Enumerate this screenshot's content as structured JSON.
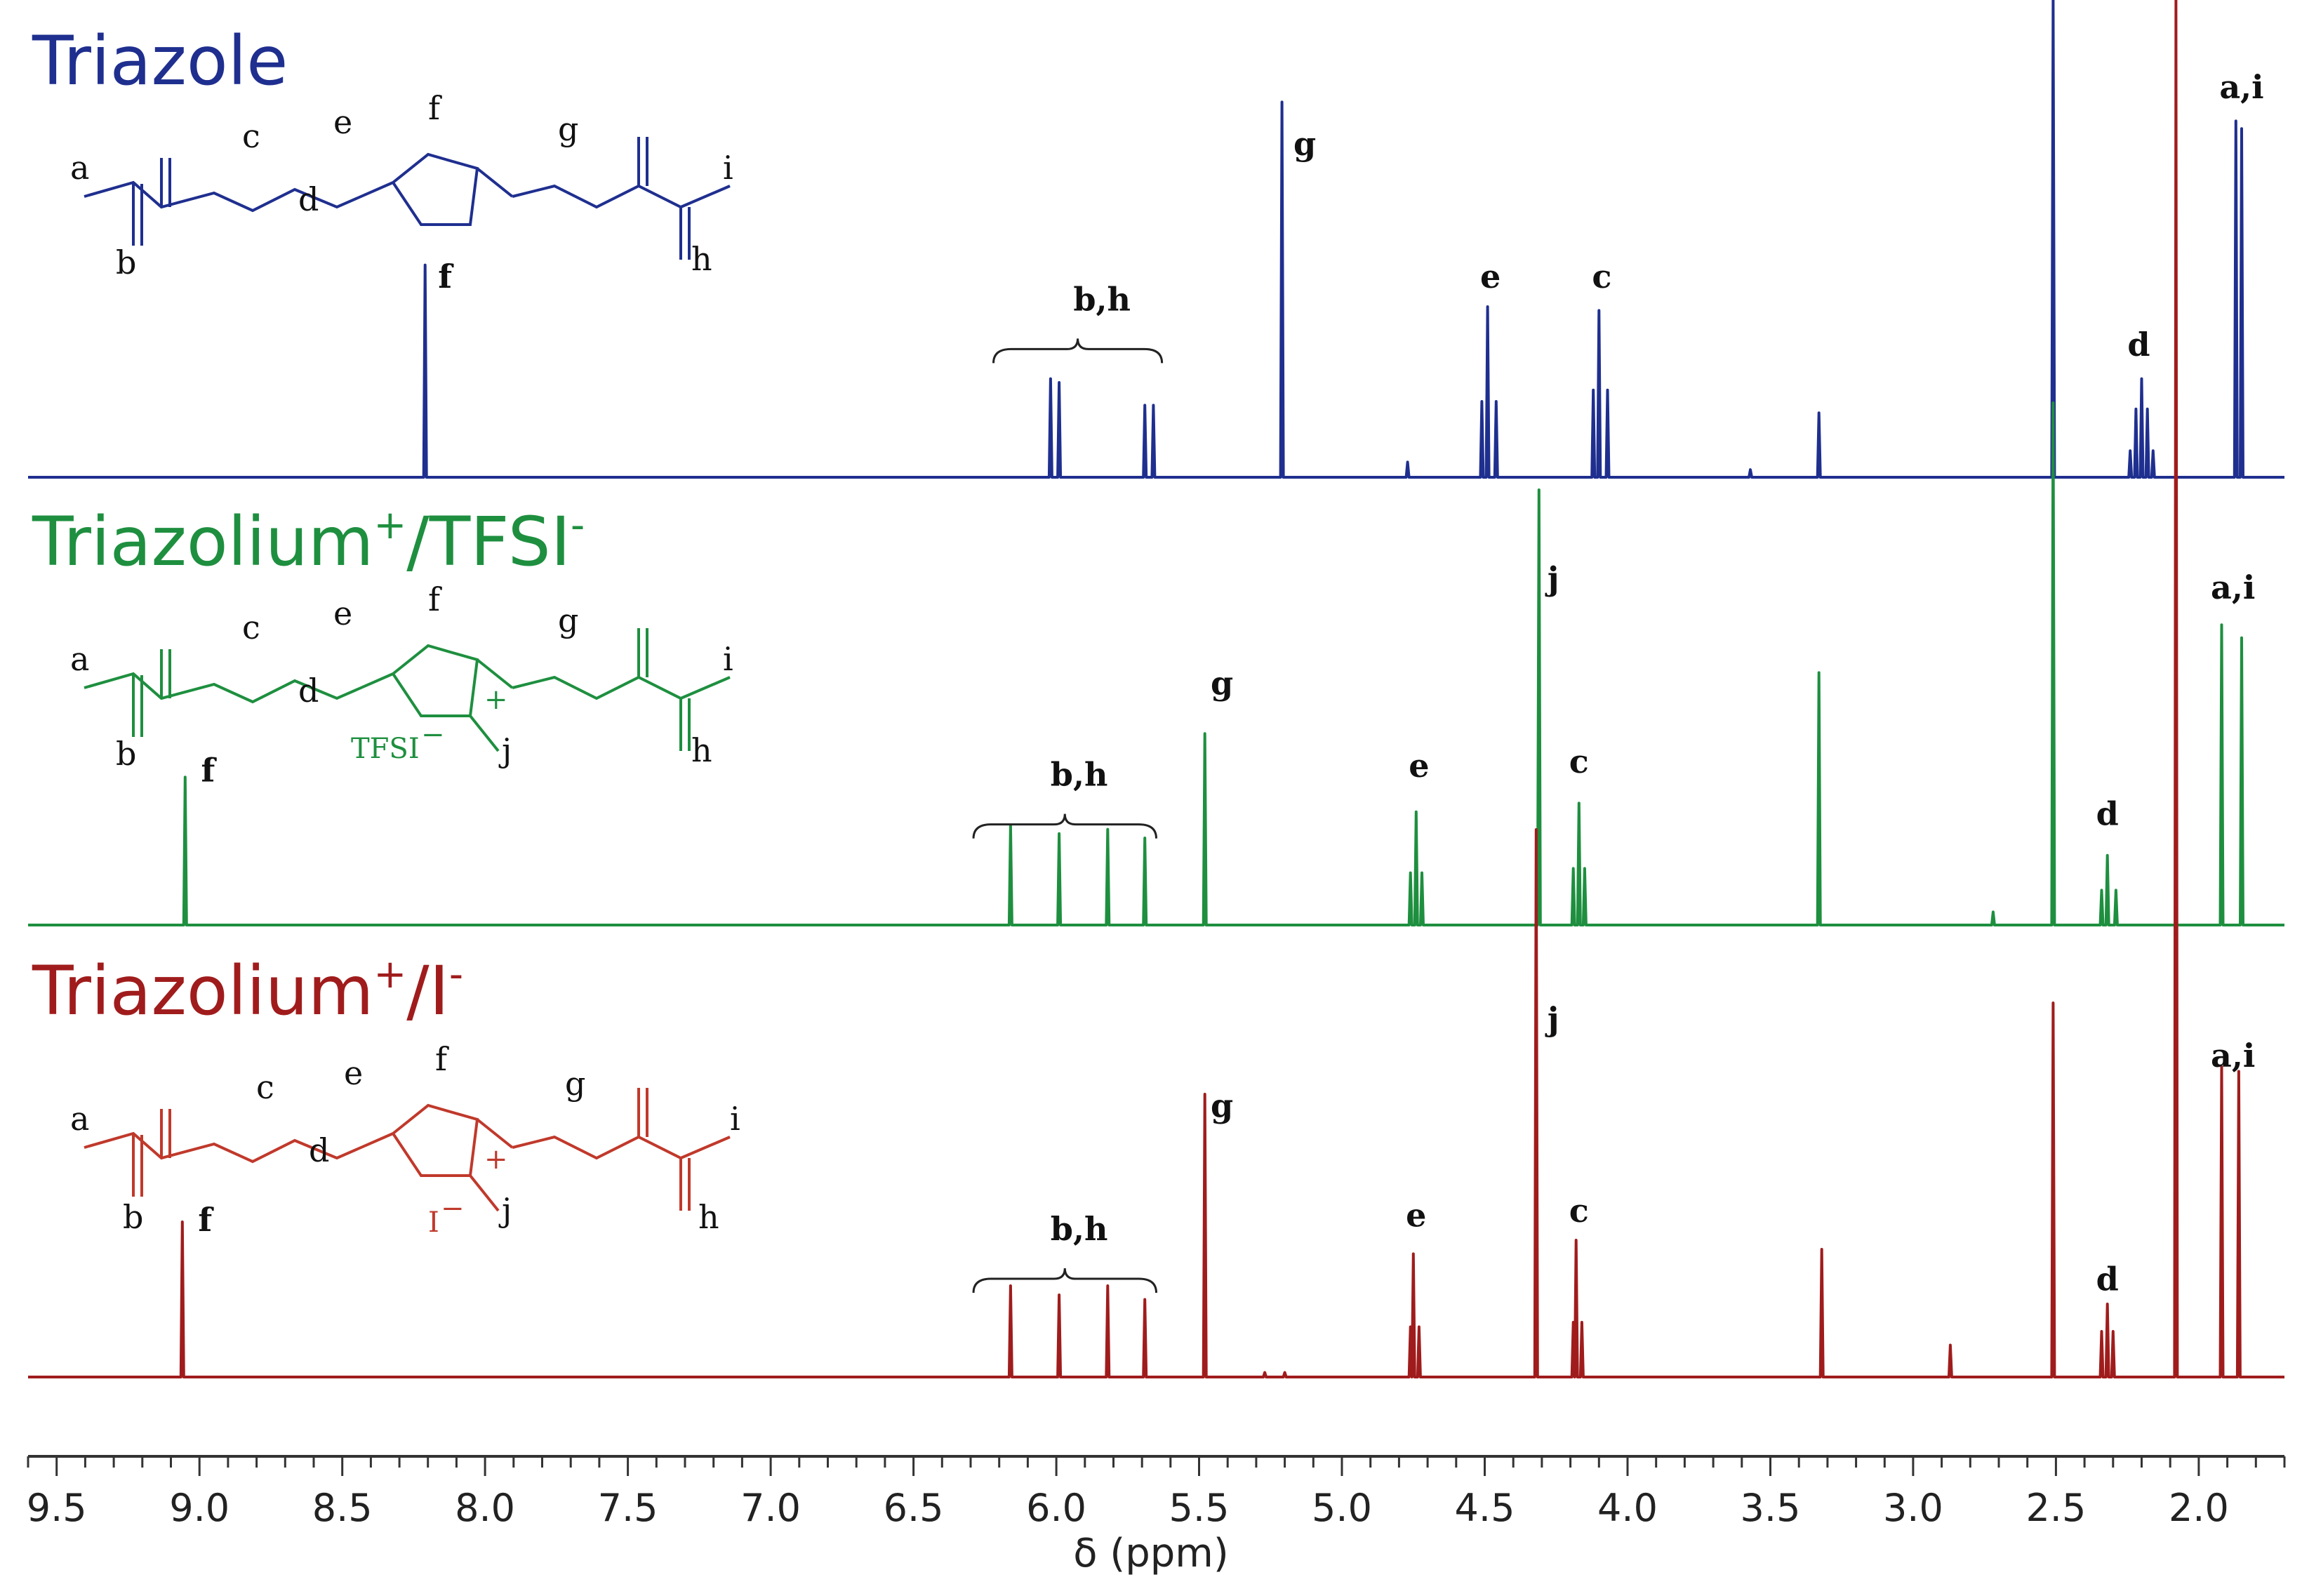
{
  "chart_data": {
    "type": "line",
    "xlabel": "δ (ppm)",
    "xlim": [
      9.6,
      1.7
    ],
    "x_reversed": true,
    "ticks": [
      "9.5",
      "9.0",
      "8.5",
      "8.0",
      "7.5",
      "7.0",
      "6.5",
      "6.0",
      "5.5",
      "5.0",
      "4.5",
      "4.0",
      "3.5",
      "3.0",
      "2.5",
      "2.0"
    ],
    "tick_values": [
      9.5,
      9.0,
      8.5,
      8.0,
      7.5,
      7.0,
      6.5,
      6.0,
      5.5,
      5.0,
      4.5,
      4.0,
      3.5,
      3.0,
      2.5,
      2.0
    ],
    "series": [
      {
        "name": "Triazole",
        "color": "#1f2f8f",
        "structure_labels": {
          "a": "a",
          "b": "b",
          "c": "c",
          "d": "d",
          "e": "e",
          "f": "f",
          "g": "g",
          "h": "h",
          "i": "i"
        },
        "peaks": [
          {
            "ppm": 8.21,
            "h": 0.56
          },
          {
            "ppm": 6.02,
            "h": 0.26
          },
          {
            "ppm": 5.99,
            "h": 0.25
          },
          {
            "ppm": 5.69,
            "h": 0.19
          },
          {
            "ppm": 5.66,
            "h": 0.19
          },
          {
            "ppm": 5.21,
            "h": 0.99
          },
          {
            "ppm": 4.77,
            "h": 0.04
          },
          {
            "ppm": 4.51,
            "h": 0.2
          },
          {
            "ppm": 4.49,
            "h": 0.45
          },
          {
            "ppm": 4.46,
            "h": 0.2
          },
          {
            "ppm": 4.12,
            "h": 0.23
          },
          {
            "ppm": 4.1,
            "h": 0.44
          },
          {
            "ppm": 4.07,
            "h": 0.23
          },
          {
            "ppm": 3.57,
            "h": 0.02
          },
          {
            "ppm": 3.33,
            "h": 0.17
          },
          {
            "ppm": 2.51,
            "h": 1.4
          },
          {
            "ppm": 2.24,
            "h": 0.07
          },
          {
            "ppm": 2.22,
            "h": 0.18
          },
          {
            "ppm": 2.2,
            "h": 0.26
          },
          {
            "ppm": 2.18,
            "h": 0.18
          },
          {
            "ppm": 2.16,
            "h": 0.07
          },
          {
            "ppm": 1.87,
            "h": 0.94
          },
          {
            "ppm": 1.85,
            "h": 0.92
          }
        ],
        "labels": [
          {
            "text": "f",
            "ppm": 8.14,
            "h": 0.5
          },
          {
            "text": "b,h",
            "ppm": 5.84,
            "h": 0.44,
            "bracket": [
              6.22,
              5.63
            ]
          },
          {
            "text": "g",
            "ppm": 5.13,
            "h": 0.85
          },
          {
            "text": "e",
            "ppm": 4.48,
            "h": 0.5
          },
          {
            "text": "c",
            "ppm": 4.09,
            "h": 0.5
          },
          {
            "text": "d",
            "ppm": 2.21,
            "h": 0.32
          },
          {
            "text": "a,i",
            "ppm": 1.85,
            "h": 1.0
          }
        ]
      },
      {
        "name": "Triazolium",
        "name_sup1": "+",
        "name_sep": "/TFSI",
        "name_sup2": "-",
        "color": "#1e8f3f",
        "counter_ion": "TFSI",
        "counter_charge": "−",
        "cation_charge": "+",
        "structure_labels": {
          "a": "a",
          "b": "b",
          "c": "c",
          "d": "d",
          "e": "e",
          "f": "f",
          "g": "g",
          "h": "h",
          "i": "i",
          "j": "j"
        },
        "peaks": [
          {
            "ppm": 9.05,
            "h": 0.34
          },
          {
            "ppm": 6.16,
            "h": 0.23
          },
          {
            "ppm": 5.99,
            "h": 0.21
          },
          {
            "ppm": 5.82,
            "h": 0.22
          },
          {
            "ppm": 5.69,
            "h": 0.2
          },
          {
            "ppm": 5.48,
            "h": 0.44
          },
          {
            "ppm": 4.76,
            "h": 0.12
          },
          {
            "ppm": 4.74,
            "h": 0.26
          },
          {
            "ppm": 4.72,
            "h": 0.12
          },
          {
            "ppm": 4.31,
            "h": 1.0
          },
          {
            "ppm": 4.19,
            "h": 0.13
          },
          {
            "ppm": 4.17,
            "h": 0.28
          },
          {
            "ppm": 4.15,
            "h": 0.13
          },
          {
            "ppm": 3.33,
            "h": 0.58
          },
          {
            "ppm": 2.72,
            "h": 0.03
          },
          {
            "ppm": 2.51,
            "h": 1.2
          },
          {
            "ppm": 2.34,
            "h": 0.08
          },
          {
            "ppm": 2.32,
            "h": 0.16
          },
          {
            "ppm": 2.29,
            "h": 0.08
          },
          {
            "ppm": 1.92,
            "h": 0.69
          },
          {
            "ppm": 1.85,
            "h": 0.66
          }
        ],
        "labels": [
          {
            "text": "f",
            "ppm": 8.97,
            "h": 0.33
          },
          {
            "text": "b,h",
            "ppm": 5.92,
            "h": 0.32,
            "bracket": [
              6.29,
              5.65
            ]
          },
          {
            "text": "g",
            "ppm": 5.42,
            "h": 0.53
          },
          {
            "text": "j",
            "ppm": 4.26,
            "h": 0.77
          },
          {
            "text": "e",
            "ppm": 4.73,
            "h": 0.34
          },
          {
            "text": "c",
            "ppm": 4.17,
            "h": 0.35
          },
          {
            "text": "d",
            "ppm": 2.32,
            "h": 0.23
          },
          {
            "text": "a,i",
            "ppm": 1.88,
            "h": 0.75
          }
        ]
      },
      {
        "name": "Triazolium",
        "name_sup1": "+",
        "name_sep": "/I",
        "name_sup2": "-",
        "color": "#a01c1c",
        "counter_ion": "I",
        "counter_charge": "−",
        "cation_charge": "+",
        "structure_labels": {
          "a": "a",
          "b": "b",
          "c": "c",
          "d": "d",
          "e": "e",
          "f": "f",
          "g": "g",
          "h": "h",
          "i": "i",
          "j": "j"
        },
        "peaks": [
          {
            "ppm": 9.06,
            "h": 0.34
          },
          {
            "ppm": 6.16,
            "h": 0.2
          },
          {
            "ppm": 5.99,
            "h": 0.18
          },
          {
            "ppm": 5.82,
            "h": 0.2
          },
          {
            "ppm": 5.69,
            "h": 0.17
          },
          {
            "ppm": 5.48,
            "h": 0.62
          },
          {
            "ppm": 5.27,
            "h": 0.01
          },
          {
            "ppm": 5.2,
            "h": 0.01
          },
          {
            "ppm": 4.76,
            "h": 0.11
          },
          {
            "ppm": 4.75,
            "h": 0.27
          },
          {
            "ppm": 4.73,
            "h": 0.11
          },
          {
            "ppm": 4.32,
            "h": 1.2
          },
          {
            "ppm": 4.19,
            "h": 0.12
          },
          {
            "ppm": 4.18,
            "h": 0.3
          },
          {
            "ppm": 4.16,
            "h": 0.12
          },
          {
            "ppm": 3.32,
            "h": 0.28
          },
          {
            "ppm": 2.87,
            "h": 0.07
          },
          {
            "ppm": 2.51,
            "h": 0.82
          },
          {
            "ppm": 2.34,
            "h": 0.1
          },
          {
            "ppm": 2.32,
            "h": 0.16
          },
          {
            "ppm": 2.3,
            "h": 0.1
          },
          {
            "ppm": 2.08,
            "h": 3.6
          },
          {
            "ppm": 1.92,
            "h": 0.68
          },
          {
            "ppm": 1.86,
            "h": 0.67
          }
        ],
        "labels": [
          {
            "text": "f",
            "ppm": 8.98,
            "h": 0.32
          },
          {
            "text": "b,h",
            "ppm": 5.92,
            "h": 0.3,
            "bracket": [
              6.29,
              5.65
            ]
          },
          {
            "text": "g",
            "ppm": 5.42,
            "h": 0.57
          },
          {
            "text": "j",
            "ppm": 4.26,
            "h": 0.76
          },
          {
            "text": "e",
            "ppm": 4.74,
            "h": 0.33
          },
          {
            "text": "c",
            "ppm": 4.17,
            "h": 0.34
          },
          {
            "text": "d",
            "ppm": 2.32,
            "h": 0.19
          },
          {
            "text": "a,i",
            "ppm": 1.88,
            "h": 0.68
          }
        ]
      }
    ]
  }
}
